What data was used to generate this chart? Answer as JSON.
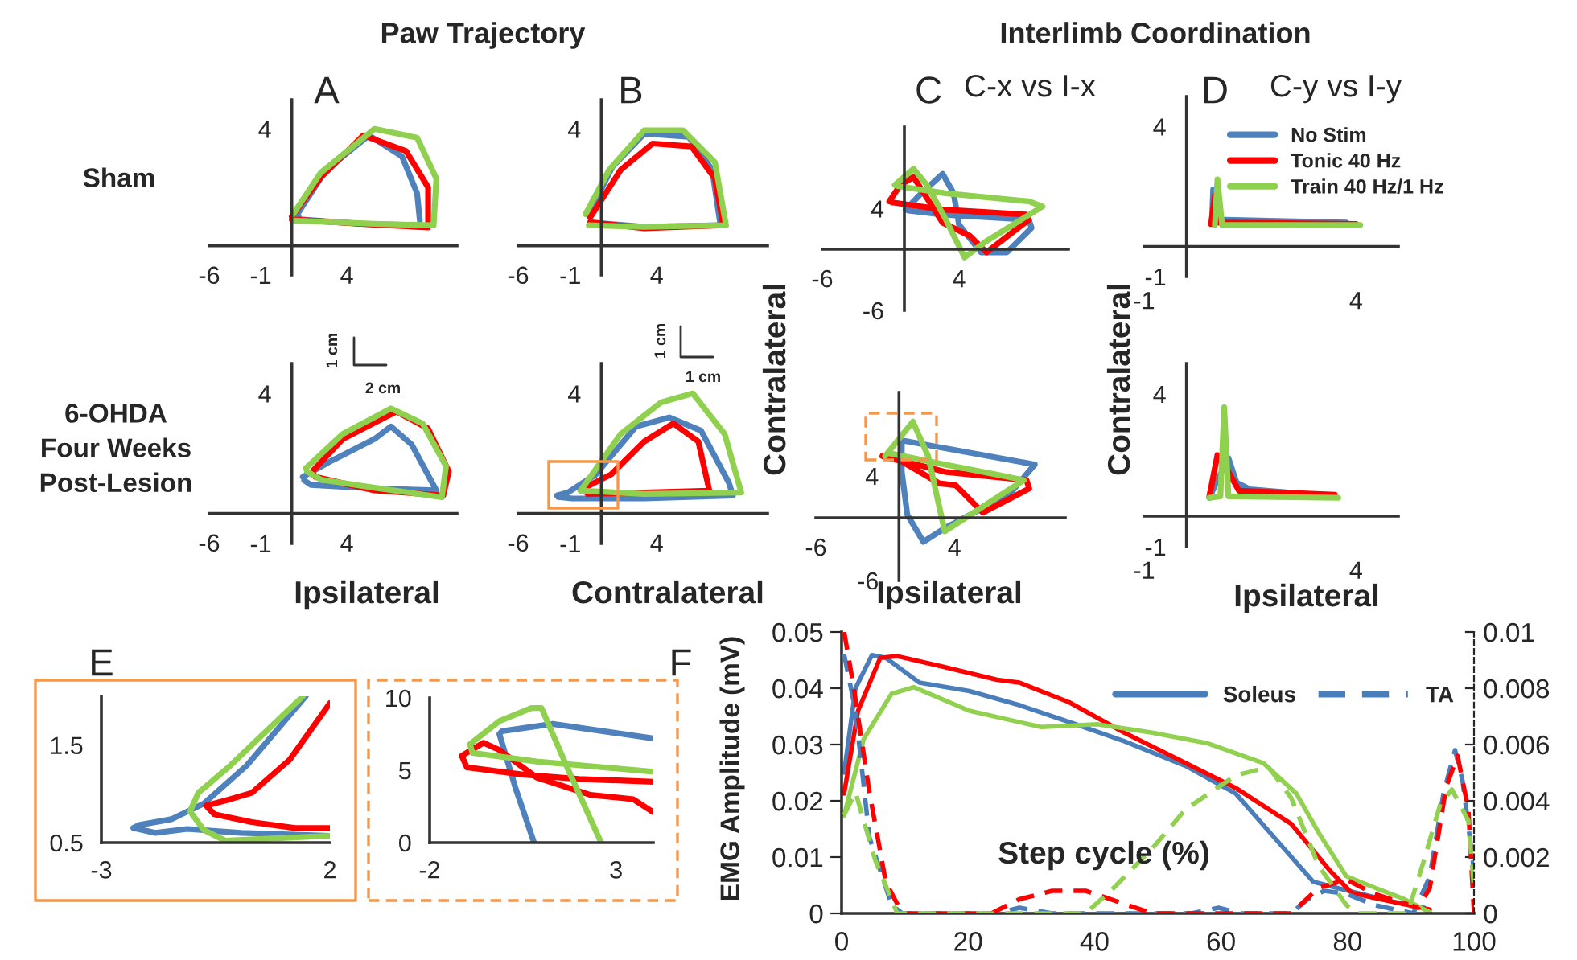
{
  "chart_data": [
    {
      "type": "line",
      "title": "A",
      "annotations": [
        "Paw Trajectory",
        "Sham"
      ],
      "xlim": [
        -6,
        12
      ],
      "ylim": [
        -1,
        5
      ],
      "xticks": [
        -6,
        4
      ],
      "yticks": [
        -1,
        4
      ],
      "series": [
        {
          "color": "#4f81bd",
          "x": [
            9.3,
            9.1,
            8,
            5.6,
            2.5,
            0.4,
            0.6,
            5,
            9.3
          ],
          "values": [
            0.86,
            1.8,
            3.06,
            3.78,
            2.6,
            1.08,
            0.9,
            0.75,
            0.7
          ]
        },
        {
          "color": "#ff0000",
          "x": [
            0,
            2.1,
            5.2,
            8.3,
            9.9,
            9.9,
            6,
            0
          ],
          "values": [
            1.0,
            2.34,
            3.78,
            3.24,
            2.0,
            0.63,
            0.72,
            0.9
          ]
        },
        {
          "color": "#8fd14f",
          "x": [
            0.1,
            2.1,
            6,
            9.1,
            10.5,
            10.3,
            6,
            0.2
          ],
          "values": [
            1.08,
            2.5,
            4.0,
            3.7,
            2.3,
            0.7,
            0.75,
            0.86
          ]
        }
      ]
    },
    {
      "type": "line",
      "title": "B",
      "xlim": [
        -6,
        12
      ],
      "ylim": [
        -1,
        5
      ],
      "xticks": [
        -6,
        4
      ],
      "yticks": [
        -1,
        4
      ],
      "series": [
        {
          "color": "#4f81bd",
          "x": [
            -0.9,
            0.8,
            3.1,
            6.3,
            8,
            8.6,
            3.1,
            -0.8
          ],
          "values": [
            1.08,
            2.7,
            3.84,
            3.73,
            2.6,
            0.7,
            0.65,
            0.8
          ]
        },
        {
          "color": "#ff0000",
          "x": [
            -0.8,
            1.4,
            3.7,
            6.5,
            8.2,
            8.8,
            3.1,
            -0.8
          ],
          "values": [
            0.97,
            2.6,
            3.5,
            3.4,
            2.3,
            0.7,
            0.6,
            0.8
          ]
        },
        {
          "color": "#8fd14f",
          "x": [
            -1.14,
            0.57,
            3.1,
            5.9,
            8.2,
            9,
            3.1,
            -0.9
          ],
          "values": [
            1.08,
            2.6,
            3.95,
            3.95,
            2.86,
            0.7,
            0.65,
            0.7
          ]
        }
      ]
    },
    {
      "type": "line",
      "title": "C",
      "subtitle": "C-x vs I-x",
      "annotations": [
        "Interlimb Coordination"
      ],
      "xlim": [
        -6,
        12
      ],
      "ylim": [
        -6,
        12
      ],
      "xticks": [
        -6,
        4
      ],
      "yticks": [
        -6,
        4
      ],
      "series": [
        {
          "color": "#4f81bd",
          "x": [
            0.1,
            1.25,
            2.8,
            3.6,
            4,
            5.6,
            7.5,
            9.3,
            9.1,
            2.8,
            0.3
          ],
          "values": [
            3.9,
            5.5,
            7.4,
            5.5,
            2.4,
            -0.3,
            -0.3,
            2.1,
            2.9,
            3.4,
            3.8
          ]
        },
        {
          "color": "#ff0000",
          "x": [
            -1.1,
            -0.3,
            0.67,
            2.8,
            4.8,
            6,
            9.1,
            8.9,
            2.8,
            -0.9
          ],
          "values": [
            4.7,
            6.3,
            7.1,
            2.6,
            1.3,
            -0.3,
            2.9,
            3.4,
            3.9,
            4.6
          ]
        },
        {
          "color": "#8fd14f",
          "x": [
            -0.7,
            0.67,
            1.65,
            3,
            4.4,
            6,
            10.1,
            9.1,
            3,
            -0.5
          ],
          "values": [
            6.3,
            7.9,
            6.3,
            3,
            -0.8,
            0.8,
            4.2,
            4.7,
            5.5,
            6.2
          ]
        }
      ]
    },
    {
      "type": "line",
      "title": "D",
      "subtitle": "C-y vs I-y",
      "legend": "top right",
      "xlim": [
        -1,
        5
      ],
      "ylim": [
        -1,
        5
      ],
      "xticks": [
        -1,
        4
      ],
      "yticks": [
        -1,
        4
      ],
      "series": [
        {
          "name": "No Stim",
          "color": "#4f81bd",
          "x": [
            0.6,
            0.63,
            0.73,
            3.77
          ],
          "values": [
            0.8,
            1.9,
            0.9,
            0.8
          ]
        },
        {
          "name": "Tonic 40 Hz",
          "color": "#ff0000",
          "x": [
            0.58,
            0.67,
            0.76,
            4.0
          ],
          "values": [
            0.75,
            1.7,
            0.8,
            0.75
          ]
        },
        {
          "name": "Train 40 Hz/1 Hz",
          "color": "#8fd14f",
          "x": [
            0.67,
            0.73,
            0.84,
            4.1
          ],
          "values": [
            0.72,
            2.24,
            0.72,
            0.72
          ]
        }
      ]
    },
    {
      "type": "line",
      "annotations": [
        "6-OHDA\nFour Weeks\nPost-Lesion",
        "1 cm",
        "2 cm"
      ],
      "xlabel": "Ipsilateral",
      "xlim": [
        -6,
        12
      ],
      "ylim": [
        -1,
        5
      ],
      "xticks": [
        -6,
        4
      ],
      "yticks": [
        -1,
        4
      ],
      "series": [
        {
          "color": "#4f81bd",
          "x": [
            0.8,
            2.9,
            6,
            7.2,
            8.7,
            10.5,
            6,
            1.4,
            0.9
          ],
          "values": [
            1.22,
            1.76,
            2.48,
            2.9,
            2.3,
            0.77,
            0.83,
            0.95,
            1.1
          ]
        },
        {
          "color": "#ff0000",
          "x": [
            1.55,
            3.7,
            7.6,
            9.9,
            11.4,
            11,
            6,
            1.7,
            1.6
          ],
          "values": [
            1.43,
            2.48,
            3.4,
            2.83,
            1.4,
            0.6,
            0.77,
            1.22,
            1.3
          ]
        },
        {
          "color": "#8fd14f",
          "x": [
            1,
            3.7,
            7.2,
            9.5,
            11.2,
            10.9,
            6,
            2.1,
            1.1
          ],
          "values": [
            1.5,
            2.65,
            3.5,
            3.0,
            1.58,
            0.54,
            0.86,
            1.13,
            1.4
          ]
        }
      ]
    },
    {
      "type": "line",
      "annotations": [
        "1 cm",
        "1 cm"
      ],
      "xlabel": "Contralateral",
      "xlim": [
        -6,
        12
      ],
      "ylim": [
        -1,
        5
      ],
      "xticks": [
        -6,
        4
      ],
      "yticks": [
        -1,
        4
      ],
      "series": [
        {
          "color": "#4f81bd",
          "x": [
            -3.2,
            -2.4,
            -0.4,
            2.5,
            4.9,
            7.2,
            9.2,
            9.5,
            3.1,
            -2.1,
            -3.1
          ],
          "values": [
            0.6,
            0.7,
            1.3,
            2.9,
            3.2,
            2.76,
            1.03,
            0.6,
            0.5,
            0.5,
            0.55
          ]
        },
        {
          "color": "#ff0000",
          "x": [
            -1.2,
            0.7,
            3.1,
            5.2,
            7,
            7.8,
            3.1,
            -1.0,
            -1.1
          ],
          "values": [
            0.86,
            1.3,
            2.4,
            3.0,
            2.4,
            0.76,
            0.7,
            0.65,
            0.78
          ]
        },
        {
          "color": "#8fd14f",
          "x": [
            -1.5,
            1.4,
            4.3,
            6.6,
            8.9,
            10.1,
            3.1,
            -1.3
          ],
          "values": [
            0.76,
            2.65,
            3.7,
            4.0,
            2.65,
            0.7,
            0.65,
            0.76
          ]
        }
      ]
    },
    {
      "type": "line",
      "xlabel": "Ipsilateral",
      "ylabel": "Contralateral",
      "xlim": [
        -6,
        12
      ],
      "ylim": [
        -6,
        12
      ],
      "xticks": [
        -6,
        4
      ],
      "yticks": [
        -6,
        4
      ],
      "series": [
        {
          "color": "#4f81bd",
          "x": [
            0.2,
            9.8,
            8,
            3.3,
            1.76,
            0.6,
            0.2,
            0.2
          ],
          "values": [
            7.4,
            5.1,
            2.3,
            -1,
            -2.3,
            0.3,
            4.4,
            7.1
          ]
        },
        {
          "color": "#ff0000",
          "x": [
            -1.2,
            0.2,
            2.9,
            4.1,
            6.05,
            9.4,
            9.2,
            3.3,
            -0.2,
            -1.0
          ],
          "values": [
            5.9,
            5.4,
            3.3,
            3.1,
            0.5,
            2.8,
            3.6,
            4.4,
            5.6,
            5.8
          ]
        },
        {
          "color": "#8fd14f",
          "x": [
            -1,
            1,
            2.1,
            3.3,
            9,
            7.2,
            3.3,
            -0.8,
            -0.95
          ],
          "values": [
            5.9,
            9.2,
            5.9,
            -1.3,
            3.6,
            4.1,
            5.1,
            6.2,
            6.0
          ]
        }
      ]
    },
    {
      "type": "line",
      "xlabel": "Ipsilateral",
      "ylabel": "Contralateral",
      "xlim": [
        -1,
        5
      ],
      "ylim": [
        -1,
        5
      ],
      "xticks": [
        -1,
        4
      ],
      "yticks": [
        -1,
        4
      ],
      "series": [
        {
          "color": "#4f81bd",
          "x": [
            0.54,
            0.67,
            0.99,
            1.18,
            1.49,
            3.5
          ],
          "values": [
            0.6,
            1.0,
            1.9,
            1.1,
            0.88,
            0.65
          ]
        },
        {
          "color": "#ff0000",
          "x": [
            0.54,
            0.73,
            0.99,
            1.24,
            3.5
          ],
          "values": [
            0.65,
            2.0,
            1.45,
            0.83,
            0.7
          ]
        },
        {
          "color": "#8fd14f",
          "x": [
            0.54,
            0.8,
            0.89,
            0.99,
            3.58
          ],
          "values": [
            0.6,
            0.65,
            3.56,
            0.65,
            0.6
          ]
        }
      ]
    },
    {
      "type": "line",
      "title": "E",
      "xlim": [
        -3,
        2
      ],
      "ylim": [
        0.5,
        2
      ],
      "xticks": [
        -3,
        2
      ],
      "yticks": [
        0.5,
        1.5
      ],
      "series": [
        {
          "color": "#4f81bd",
          "x": [
            1.47,
            0.18,
            -0.76,
            -1.47,
            -2.18,
            -2.3,
            -1.82,
            -1.12,
            0.06,
            2
          ],
          "values": [
            2.0,
            1.29,
            0.9,
            0.74,
            0.68,
            0.65,
            0.6,
            0.64,
            0.6,
            0.57
          ]
        },
        {
          "color": "#ff0000",
          "x": [
            2,
            1.12,
            0.29,
            -0.29,
            -0.71,
            -0.53,
            0.29,
            1.24,
            2
          ],
          "values": [
            1.93,
            1.35,
            1.01,
            0.93,
            0.88,
            0.79,
            0.71,
            0.65,
            0.65
          ]
        },
        {
          "color": "#8fd14f",
          "x": [
            1.41,
            -0.18,
            -0.88,
            -1.06,
            -0.76,
            -0.29,
            0.65,
            2
          ],
          "values": [
            2.0,
            1.29,
            1.01,
            0.82,
            0.63,
            0.52,
            0.54,
            0.57
          ]
        }
      ]
    },
    {
      "type": "line",
      "xlim": [
        -2,
        4
      ],
      "ylim": [
        0,
        10
      ],
      "xticks": [
        -2,
        3
      ],
      "yticks": [
        0,
        5,
        10
      ],
      "series": [
        {
          "color": "#4f81bd",
          "x": [
            0.8,
            0.3,
            -0.13,
            -0.06,
            1.3,
            4
          ],
          "values": [
            0,
            3.8,
            7.5,
            7.7,
            8.2,
            7.2
          ]
        },
        {
          "color": "#ff0000",
          "x": [
            4,
            3.46,
            2.31,
            0.87,
            -0.13,
            -0.56,
            -1.14,
            -1.0,
            0.5,
            2,
            4
          ],
          "values": [
            2.1,
            3.0,
            3.3,
            4.5,
            6.4,
            6.9,
            6.0,
            5.2,
            4.7,
            4.4,
            4.2
          ]
        },
        {
          "color": "#8fd14f",
          "x": [
            2.6,
            1.74,
            1.0,
            0.73,
            -0.13,
            -0.92,
            -0.85,
            0.87,
            4
          ],
          "values": [
            0,
            4.9,
            9.3,
            9.3,
            8.4,
            6.8,
            6.2,
            5.6,
            4.9
          ]
        }
      ]
    },
    {
      "type": "line",
      "title": "F",
      "xlabel": "Step cycle (%)",
      "ylabel": "EMG Amplitude (mV)",
      "legend": "top right",
      "xlim": [
        0,
        100
      ],
      "ylim": [
        0,
        0.05
      ],
      "xticks": [
        0,
        20,
        40,
        60,
        80,
        100
      ],
      "yticks": [
        0,
        0.01,
        0.02,
        0.03,
        0.04,
        0.05
      ],
      "y2lim": [
        0,
        0.01
      ],
      "y2ticks": [
        0,
        0.002,
        0.004,
        0.006,
        0.008,
        0.01
      ],
      "series": [
        {
          "name": "Soleus",
          "color": "#4a7ebb",
          "line_style": "solid",
          "x": [
            0.4,
            2.2,
            4.8,
            7,
            12.3,
            20.2,
            28.1,
            36,
            44.7,
            54.4,
            62.3,
            68.4,
            74.6,
            79.8,
            86.8,
            92.1
          ],
          "values": [
            0.025,
            0.04,
            0.0459,
            0.0454,
            0.041,
            0.0395,
            0.037,
            0.034,
            0.0306,
            0.0262,
            0.0213,
            0.0135,
            0.0056,
            0.0041,
            0.0022,
            0.001
          ]
        },
        {
          "color": "#ff0000",
          "line_style": "solid",
          "x": [
            0.4,
            2.6,
            6.1,
            8.8,
            15.8,
            24.6,
            28.1,
            36,
            44.7,
            53.5,
            62.3,
            71.1,
            77.2,
            80.7,
            88.6,
            93
          ],
          "values": [
            0.0213,
            0.036,
            0.0454,
            0.0457,
            0.0439,
            0.0415,
            0.041,
            0.0375,
            0.0321,
            0.0272,
            0.0223,
            0.0159,
            0.0076,
            0.0036,
            0.0017,
            0.0007
          ]
        },
        {
          "color": "#92d050",
          "line_style": "solid",
          "x": [
            0.4,
            3.5,
            7.9,
            11.4,
            20.2,
            31.6,
            40.4,
            49.1,
            57.9,
            66.7,
            71.9,
            75.4,
            79.8,
            84.2,
            88.6,
            93
          ],
          "values": [
            0.0174,
            0.031,
            0.039,
            0.0402,
            0.036,
            0.0331,
            0.0336,
            0.0321,
            0.0302,
            0.0267,
            0.0213,
            0.0144,
            0.0066,
            0.0046,
            0.0027,
            0.0002
          ]
        },
        {
          "name": "TA",
          "color": "#4a7ebb",
          "line_style": "dashed",
          "axis": "y2",
          "x": [
            0.4,
            2.2,
            4.4,
            7.9,
            9.6,
            24.6,
            28.1,
            33.3,
            55.3,
            59.6,
            63.2,
            71.1,
            73.7,
            76.3,
            79.8,
            84.2,
            90.4,
            93,
            95.2,
            97,
            98.2,
            100
          ],
          "values": [
            0.0092,
            0.0072,
            0.0027,
            0.0003,
            0,
            0,
            0.0002,
            0,
            0,
            0.0002,
            0,
            0,
            0.0005,
            0.0008,
            0.0007,
            0.0003,
            0,
            0.0013,
            0.0043,
            0.0058,
            0.0047,
            0.0015
          ]
        },
        {
          "color": "#ff0000",
          "line_style": "dashed",
          "axis": "y2",
          "x": [
            0.4,
            1.8,
            4.4,
            7,
            9.6,
            23.7,
            28.1,
            33.3,
            38.6,
            43.9,
            49.1,
            71.1,
            75.4,
            79.8,
            84.2,
            91.2,
            93,
            95.6,
            97.4,
            99.1,
            100
          ],
          "values": [
            0.01,
            0.0082,
            0.0043,
            0.0011,
            0,
            0,
            0.0005,
            0.0008,
            0.0008,
            0.0004,
            0,
            0,
            0.0009,
            0.0012,
            0.0007,
            0.0002,
            0.0009,
            0.0045,
            0.0056,
            0.0037,
            0
          ]
        },
        {
          "color": "#92d050",
          "line_style": "dashed",
          "axis": "y2",
          "x": [
            0.4,
            2.2,
            5.3,
            8.8,
            38.6,
            43,
            49.1,
            54.4,
            62.3,
            67.5,
            71.1,
            75.4,
            79.8,
            81.6,
            89.5,
            92.1,
            94.7,
            96.5,
            99.1,
            100
          ],
          "values": [
            0.0035,
            0.0043,
            0.0019,
            0,
            0,
            0.0009,
            0.0023,
            0.0037,
            0.0049,
            0.0052,
            0.0041,
            0.0017,
            0.0003,
            0,
            0,
            0.0019,
            0.0039,
            0.0044,
            0.0033,
            0.0009
          ]
        }
      ]
    }
  ]
}
